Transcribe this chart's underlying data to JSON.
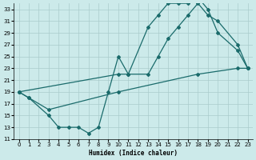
{
  "xlabel": "Humidex (Indice chaleur)",
  "xlim": [
    -0.5,
    23.5
  ],
  "ylim": [
    11,
    34
  ],
  "yticks": [
    11,
    13,
    15,
    17,
    19,
    21,
    23,
    25,
    27,
    29,
    31,
    33
  ],
  "xticks": [
    0,
    1,
    2,
    3,
    4,
    5,
    6,
    7,
    8,
    9,
    10,
    11,
    12,
    13,
    14,
    15,
    16,
    17,
    18,
    19,
    20,
    21,
    22,
    23
  ],
  "bg_color": "#cceaea",
  "grid_color": "#aacccc",
  "line_color": "#1a6b6b",
  "curve_a_x": [
    0,
    1,
    3,
    4,
    5,
    6,
    7,
    8,
    9,
    10,
    11,
    13,
    14,
    15,
    16,
    17,
    18,
    19,
    20,
    22,
    23
  ],
  "curve_a_y": [
    19,
    18,
    15,
    13,
    13,
    13,
    12,
    13,
    19,
    25,
    22,
    30,
    32,
    34,
    34,
    34,
    35,
    33,
    29,
    26,
    23
  ],
  "curve_b_x": [
    0,
    10,
    11,
    13,
    14,
    15,
    16,
    17,
    18,
    19,
    20,
    22,
    23
  ],
  "curve_b_y": [
    19,
    22,
    22,
    22,
    25,
    28,
    30,
    32,
    34,
    32,
    31,
    27,
    23
  ],
  "curve_c_x": [
    0,
    1,
    3,
    10,
    18,
    22,
    23
  ],
  "curve_c_y": [
    19,
    18,
    16,
    19,
    22,
    23,
    23
  ]
}
